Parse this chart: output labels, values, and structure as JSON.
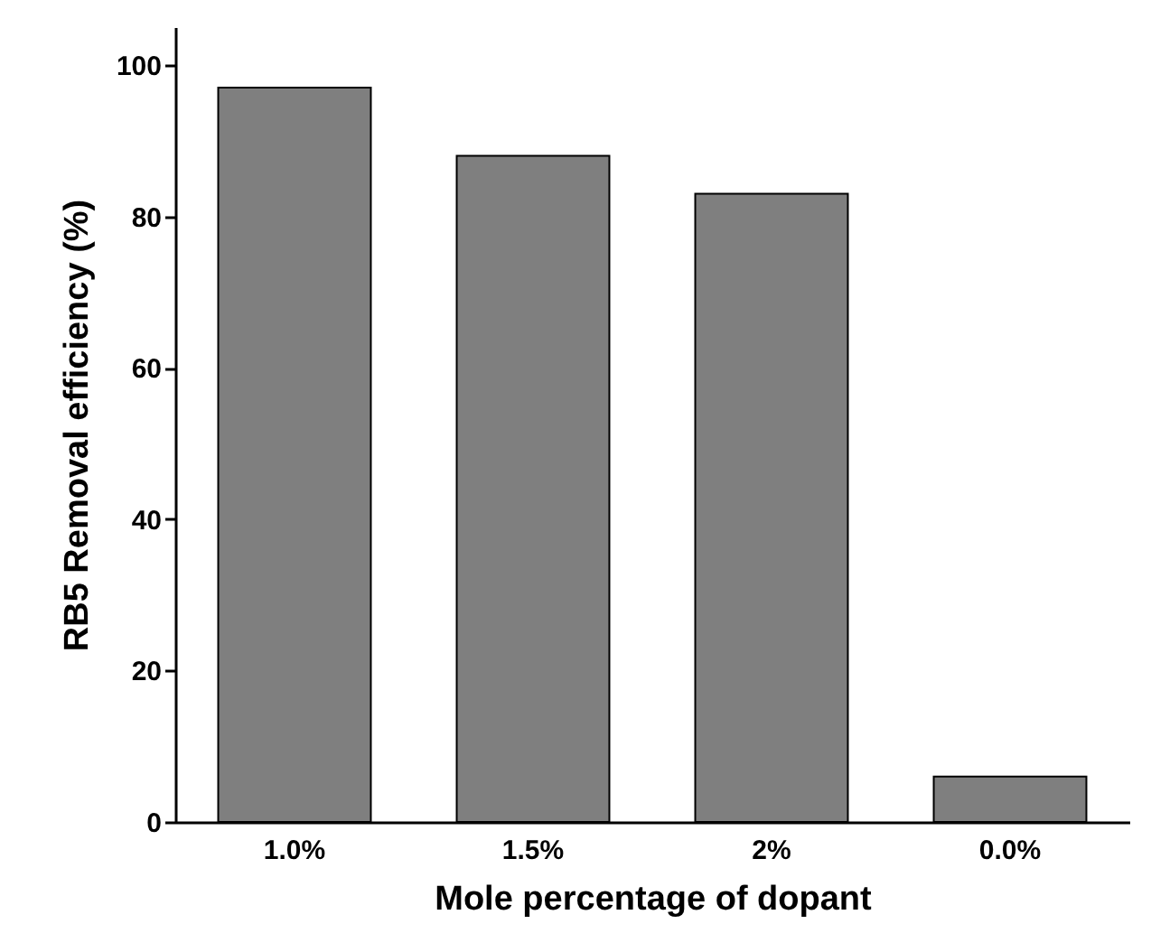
{
  "chart_data": {
    "type": "bar",
    "xlabel": "Mole percentage of dopant",
    "ylabel": "RB5 Removal efficiency (%)",
    "categories": [
      "1.0%",
      "1.5%",
      "2%",
      "0.0%"
    ],
    "values": [
      97,
      88,
      83,
      6
    ],
    "color": "#7f7f7f",
    "ylim": [
      0,
      105
    ],
    "yticks": [
      0,
      20,
      40,
      60,
      80,
      100
    ],
    "grid": false
  }
}
